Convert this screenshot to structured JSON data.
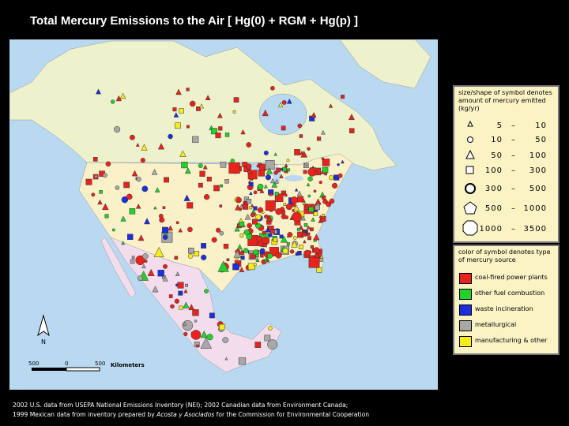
{
  "title": "Total Mercury Emissions to the Air [ Hg(0) + RGM + Hg(p) ]",
  "legend_size": {
    "heading": "size/shape of symbol denotes amount of mercury emitted (kg/yr)",
    "ranges": [
      [
        5,
        10
      ],
      [
        10,
        50
      ],
      [
        50,
        100
      ],
      [
        100,
        300
      ],
      [
        300,
        500
      ],
      [
        500,
        1000
      ],
      [
        1000,
        3500
      ]
    ]
  },
  "legend_color": {
    "heading": "color of symbol denotes type of mercury source",
    "items": [
      {
        "label": "coal-fired power plants",
        "color": "#e8231c"
      },
      {
        "label": "other fuel combustion",
        "color": "#22d22a"
      },
      {
        "label": "waste incineration",
        "color": "#1c2ee0"
      },
      {
        "label": "metallurgical",
        "color": "#a8a8a8"
      },
      {
        "label": "manufacturing & other",
        "color": "#f5ec1a"
      }
    ]
  },
  "scale": {
    "labels": [
      "500",
      "0",
      "500"
    ],
    "unit": "Kilometers"
  },
  "north": "N",
  "footer": {
    "line1": "2002 U.S. data from USEPA National Emissions Inventory (NEI); 2002 Canadian data from Environment Canada;",
    "line2_before": "1999 Mexican data from inventory prepared by ",
    "line2_italic": "Acosta y Asociados",
    "line2_after": " for the Commission for Environmental Cooperation"
  }
}
